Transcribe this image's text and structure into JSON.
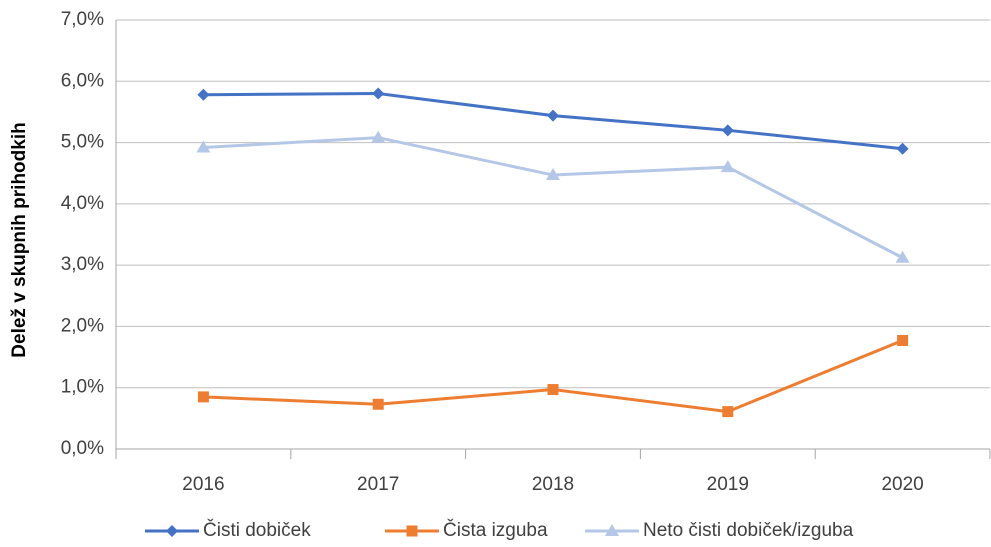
{
  "chart_data": {
    "type": "line",
    "y_label": "Delež v skupnih prihodkih",
    "categories": [
      "2016",
      "2017",
      "2018",
      "2019",
      "2020"
    ],
    "series": [
      {
        "name": "Čisti dobiček",
        "color": "#4472c4",
        "marker": "diamond",
        "values": [
          5.78,
          5.8,
          5.44,
          5.2,
          4.9
        ]
      },
      {
        "name": "Čista izguba",
        "color": "#ed7d31",
        "marker": "square",
        "values": [
          0.85,
          0.73,
          0.97,
          0.61,
          1.77
        ]
      },
      {
        "name": "Neto čisti dobiček/izguba",
        "color": "#b4c7e7",
        "marker": "triangle",
        "values": [
          4.92,
          5.08,
          4.47,
          4.6,
          3.12
        ]
      }
    ],
    "ylim": [
      0,
      7
    ],
    "yticks": [
      {
        "value": 0,
        "label": "0,0%"
      },
      {
        "value": 1,
        "label": "1,0%"
      },
      {
        "value": 2,
        "label": "2,0%"
      },
      {
        "value": 3,
        "label": "3,0%"
      },
      {
        "value": 4,
        "label": "4,0%"
      },
      {
        "value": 5,
        "label": "5,0%"
      },
      {
        "value": 6,
        "label": "6,0%"
      },
      {
        "value": 7,
        "label": "7,0%"
      }
    ],
    "grid": true,
    "legend": "bottom"
  }
}
